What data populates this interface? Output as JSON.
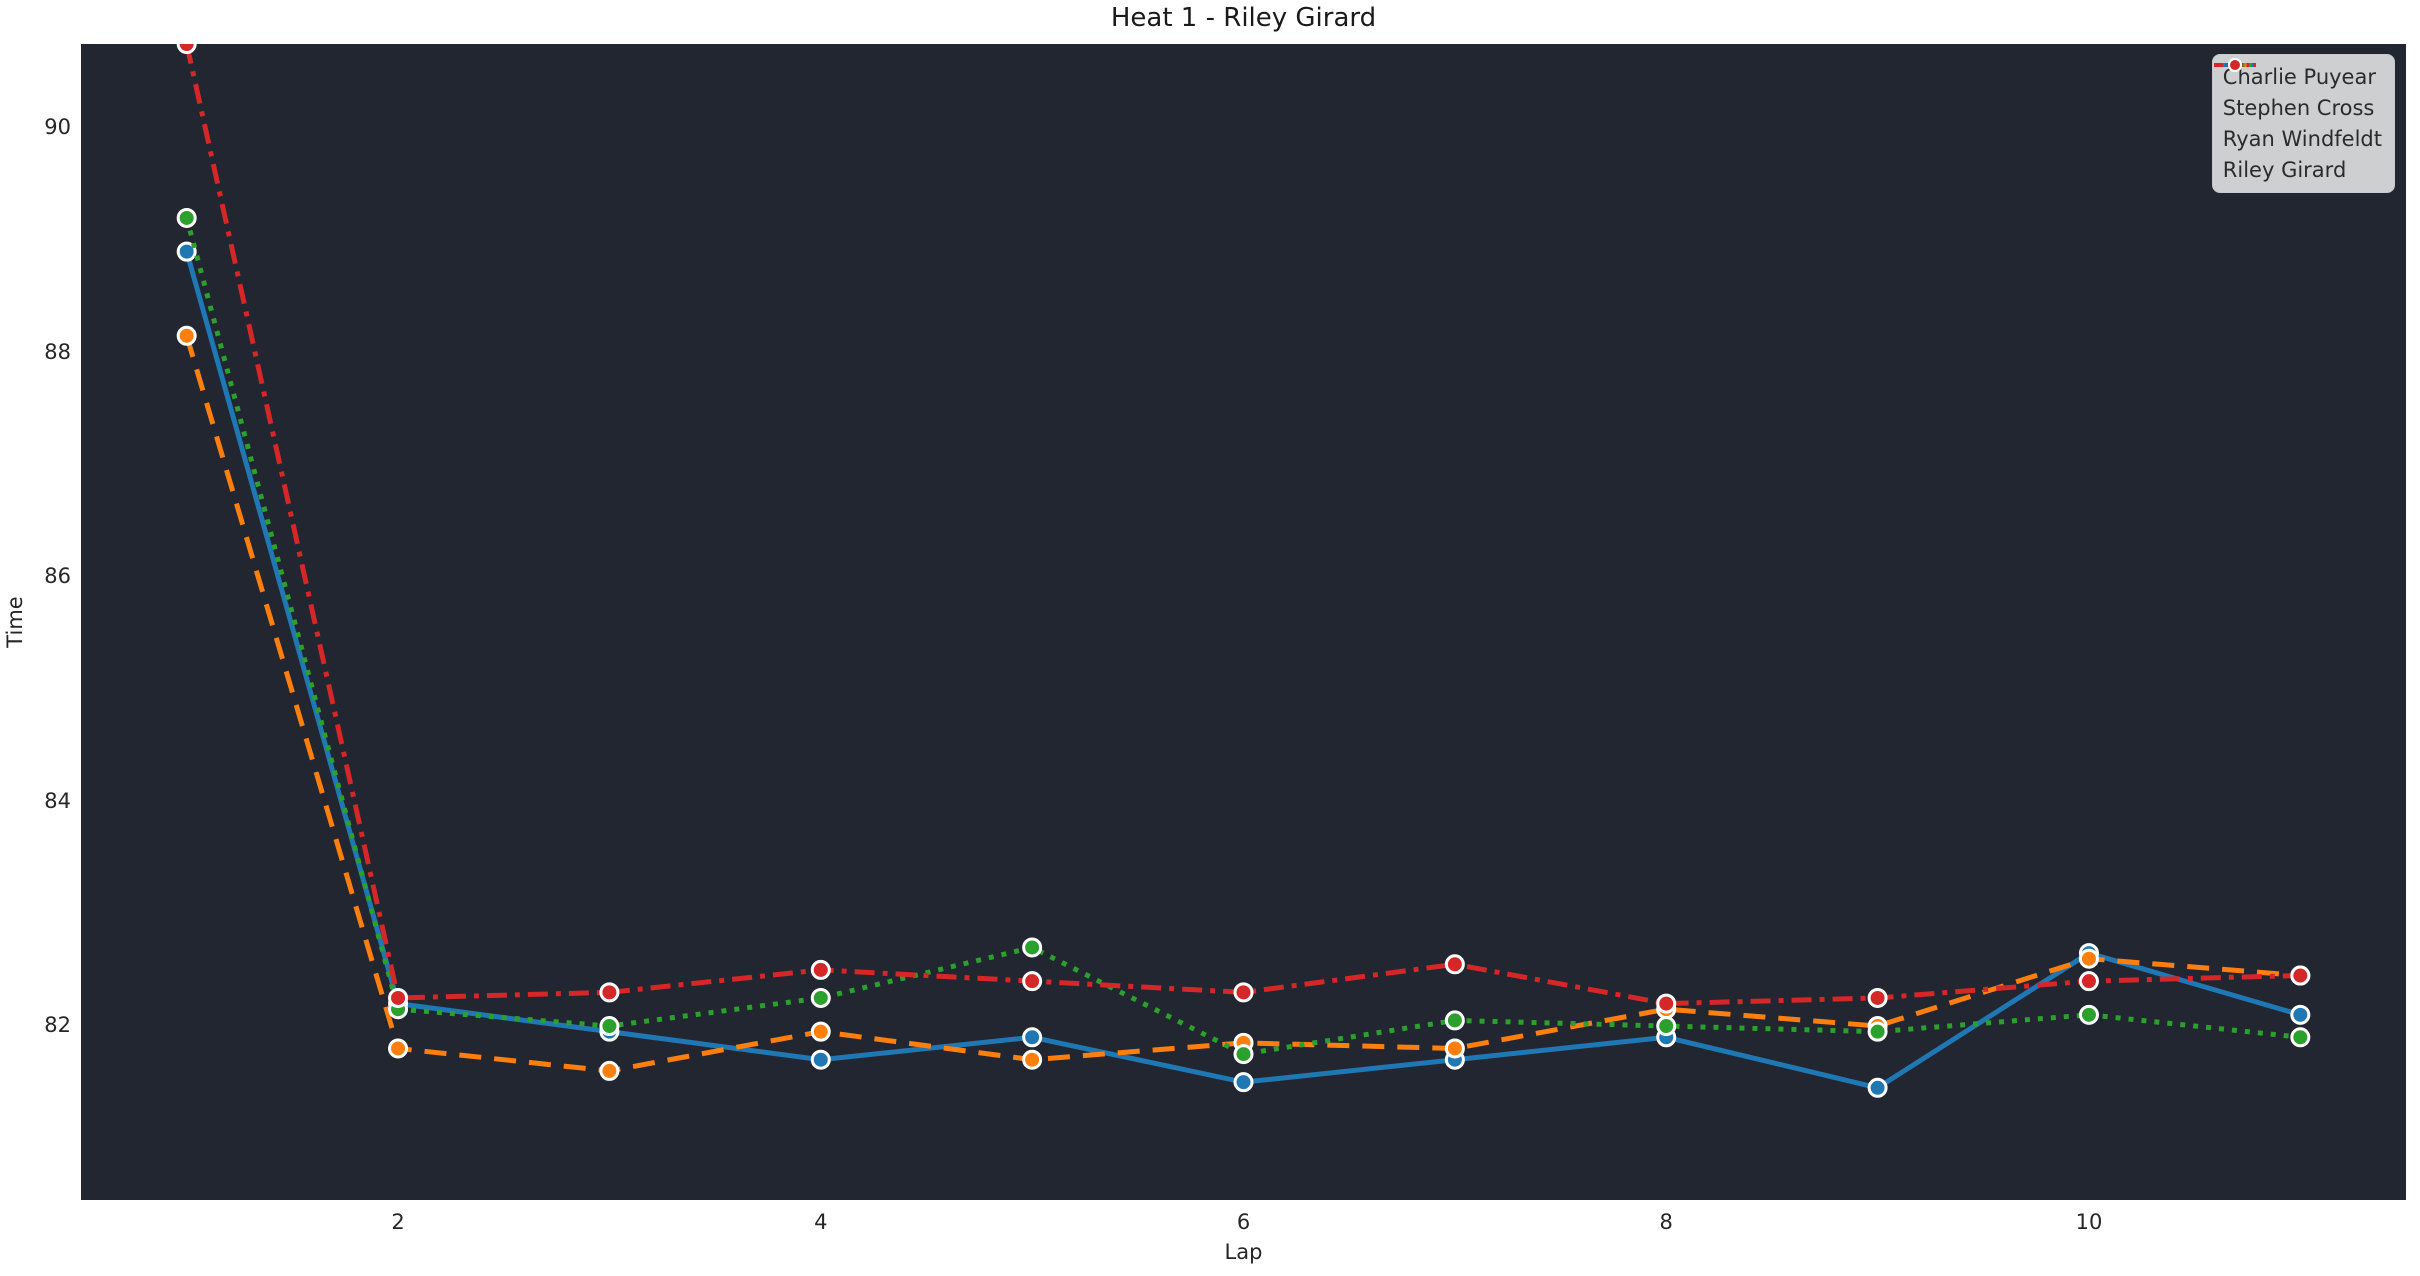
{
  "chart_data": {
    "type": "line",
    "title": "Heat 1 - Riley Girard",
    "xlabel": "Lap",
    "ylabel": "Time",
    "x": [
      1,
      2,
      3,
      4,
      5,
      6,
      7,
      8,
      9,
      10,
      11
    ],
    "series": [
      {
        "name": "Charlie Puyear",
        "color": "#1f77b4",
        "linestyle": "solid",
        "values": [
          88.9,
          82.2,
          81.95,
          81.7,
          81.9,
          81.5,
          81.7,
          81.9,
          81.45,
          82.65,
          82.1
        ]
      },
      {
        "name": "Stephen Cross",
        "color": "#ff7f0e",
        "linestyle": "dashed",
        "values": [
          88.15,
          81.8,
          81.6,
          81.95,
          81.7,
          81.85,
          81.8,
          82.15,
          82.0,
          82.6,
          82.45
        ]
      },
      {
        "name": "Ryan Windfeldt",
        "color": "#2ca02c",
        "linestyle": "dotted",
        "values": [
          89.2,
          82.15,
          82.0,
          82.25,
          82.7,
          81.75,
          82.05,
          82.0,
          81.95,
          82.1,
          81.9
        ]
      },
      {
        "name": "Riley Girard",
        "color": "#d62728",
        "linestyle": "dashdot",
        "values": [
          90.75,
          82.25,
          82.3,
          82.5,
          82.4,
          82.3,
          82.55,
          82.2,
          82.25,
          82.4,
          82.45
        ]
      }
    ],
    "xlim": [
      0.5,
      11.5
    ],
    "ylim": [
      80.45,
      90.75
    ],
    "xticks": [
      2,
      4,
      6,
      8,
      10
    ],
    "yticks": [
      82,
      84,
      86,
      88,
      90
    ],
    "grid": false,
    "legend_position": "upper right",
    "axes_bg": "#212631",
    "figure_bg": "#ffffff",
    "text_color": "#262626",
    "legend_bg": "rgba(255,255,255,0.78)"
  }
}
